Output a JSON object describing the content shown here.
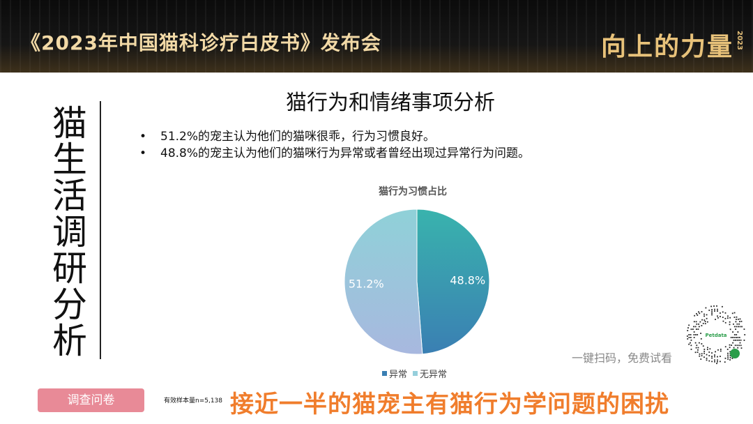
{
  "banner": {
    "title": "《2023年中国猫科诊疗白皮书》发布会",
    "logo_text": "向上的力量",
    "logo_year": "2023"
  },
  "side_title": "猫生活调研分析",
  "main_title": "猫行为和情绪事项分析",
  "bullets": [
    "51.2%的宠主认为他们的猫咪很乖，行为习惯良好。",
    "48.8%的宠主认为他们的猫咪行为异常或者曾经出现过异常行为问题。"
  ],
  "chart_data": {
    "type": "pie",
    "title": "猫行为习惯占比",
    "slices": [
      {
        "name": "异常",
        "value": 48.8,
        "label": "48.8%",
        "color": "#3a9aa8"
      },
      {
        "name": "无异常",
        "value": 51.2,
        "label": "51.2%",
        "color": "#96cfdc"
      }
    ],
    "legend_position": "bottom"
  },
  "qr": {
    "label": "Petdata"
  },
  "scan_text": "一键扫码，免费试看",
  "survey_button": "调查问卷",
  "sample_note": "有效样本量n=5,138",
  "conclusion": "接近一半的猫宠主有猫行为学问题的困扰"
}
